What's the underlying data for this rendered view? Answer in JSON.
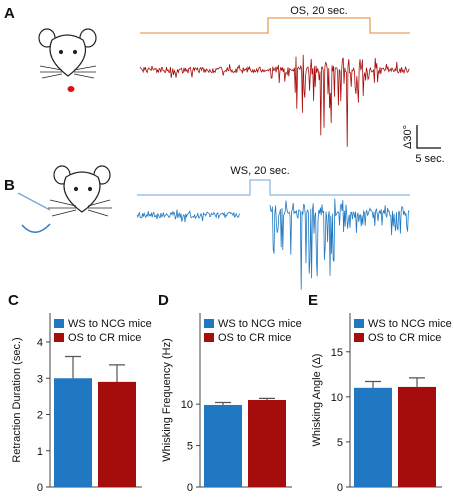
{
  "panel_a": {
    "label": "A",
    "stimulus": "OS, 20 sec.",
    "scale_y": "Δ30°",
    "scale_x": "5 sec."
  },
  "panel_b": {
    "label": "B",
    "stimulus": "WS, 20 sec."
  },
  "chart_data": [
    {
      "type": "bar",
      "label": "C",
      "ylabel": "Retraction Duration (sec.)",
      "ylim": [
        0,
        4.8
      ],
      "yticks": [
        0,
        1,
        2,
        3,
        4
      ],
      "series": [
        {
          "name": "WS to NCG mice",
          "color": "#1f78c1",
          "values": [
            3.0
          ],
          "errors": [
            0.6
          ]
        },
        {
          "name": "OS to CR mice",
          "color": "#a50d0d",
          "values": [
            2.9
          ],
          "errors": [
            0.47
          ]
        }
      ]
    },
    {
      "type": "bar",
      "label": "D",
      "ylabel": "Whisking  Frequency (Hz)",
      "ylim": [
        0,
        21
      ],
      "yticks": [
        0,
        5,
        10
      ],
      "series": [
        {
          "name": "WS to NCG mice",
          "color": "#1f78c1",
          "values": [
            9.9
          ],
          "errors": [
            0.3
          ]
        },
        {
          "name": "OS to CR mice",
          "color": "#a50d0d",
          "values": [
            10.5
          ],
          "errors": [
            0.2
          ]
        }
      ]
    },
    {
      "type": "bar",
      "label": "E",
      "ylabel": "Whisking Angle (Δ)",
      "ylim": [
        0,
        19.3
      ],
      "yticks": [
        0,
        5,
        10,
        15
      ],
      "series": [
        {
          "name": "WS to NCG mice",
          "color": "#1f78c1",
          "values": [
            11.0
          ],
          "errors": [
            0.7
          ]
        },
        {
          "name": "OS to CR mice",
          "color": "#a50d0d",
          "values": [
            11.1
          ],
          "errors": [
            1.0
          ]
        }
      ]
    }
  ]
}
